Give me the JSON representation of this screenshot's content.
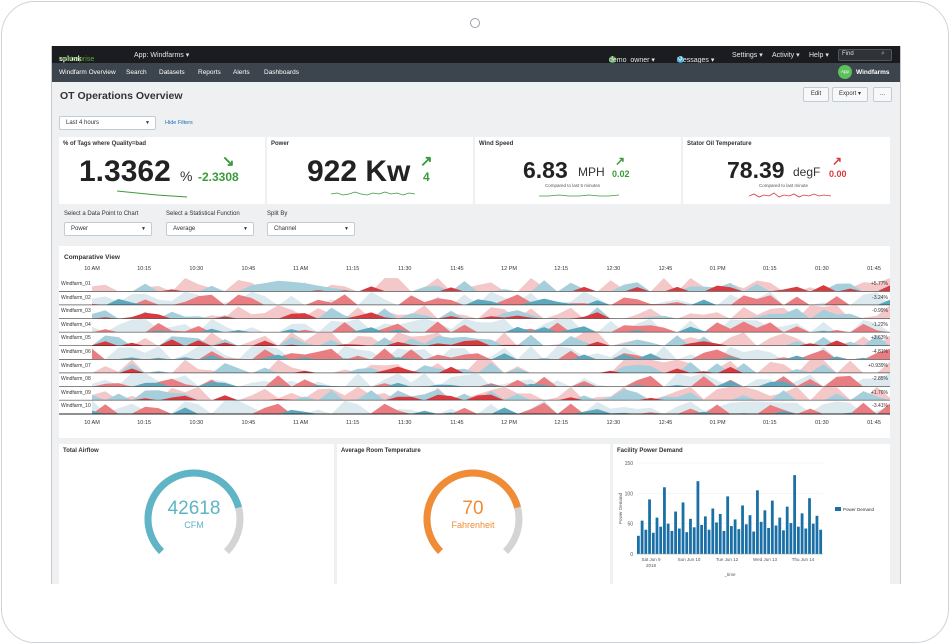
{
  "topbar": {
    "logo_main": "splunk",
    "logo_accent": ">enterprise",
    "app": "App: Windfarms ▾",
    "user_badge": "!",
    "user": "demo_owner ▾",
    "msg_badge": "3",
    "messages": "Messages ▾",
    "settings": "Settings ▾",
    "activity": "Activity ▾",
    "help": "Help ▾",
    "find": "Find"
  },
  "navbar": {
    "items": [
      "Windfarm Overview",
      "Search",
      "Datasets",
      "Reports",
      "Alerts",
      "Dashboards"
    ],
    "app_icon": "App",
    "app_name": "Windfarms"
  },
  "dashboard": {
    "title": "OT Operations Overview",
    "edit": "Edit",
    "export": "Export ▾",
    "more": "...",
    "time_range": "Last 4 hours",
    "hide_filters": "Hide Filters"
  },
  "kpis": [
    {
      "title": "% of Tags where Quality=bad",
      "value": "1.3362",
      "unit": "%",
      "delta": "-2.3308",
      "arrow": "↘",
      "color": "#3a9b3a",
      "note": ""
    },
    {
      "title": "Power",
      "value": "922 Kw",
      "unit": "",
      "delta": "4",
      "arrow": "↗",
      "color": "#3a9b3a",
      "note": ""
    },
    {
      "title": "Wind Speed",
      "value": "6.83",
      "unit": "MPH",
      "delta": "0.02",
      "arrow": "↗",
      "color": "#3a9b3a",
      "note": "Compared to last 5 minutes"
    },
    {
      "title": "Stator Oil Temperature",
      "value": "78.39",
      "unit": "degF",
      "delta": "0.00",
      "arrow": "↗",
      "color": "#d63a3a",
      "note": "Compared to last minute"
    }
  ],
  "filters": [
    {
      "label": "Select a Data Point to Chart",
      "value": "Power"
    },
    {
      "label": "Select a Statistical Function",
      "value": "Average"
    },
    {
      "label": "Split By",
      "value": "Channel"
    }
  ],
  "comparative": {
    "title": "Comparative View",
    "ticks": [
      "10 AM",
      "10:15",
      "10:30",
      "10:45",
      "11 AM",
      "11:15",
      "11:30",
      "11:45",
      "12 PM",
      "12:15",
      "12:30",
      "12:45",
      "01 PM",
      "01:15",
      "01:30",
      "01:45"
    ],
    "rows": [
      {
        "name": "Windfarm_01",
        "value": "+5.77%"
      },
      {
        "name": "Windfarm_02",
        "value": "-3.24%"
      },
      {
        "name": "Windfarm_03",
        "value": "-0.99%"
      },
      {
        "name": "Windfarm_04",
        "value": "-1.22%"
      },
      {
        "name": "Windfarm_05",
        "value": "+3.63%"
      },
      {
        "name": "Windfarm_06",
        "value": "-4.81%"
      },
      {
        "name": "Windfarm_07",
        "value": "+0.939%"
      },
      {
        "name": "Windfarm_08",
        "value": "-2.85%"
      },
      {
        "name": "Windfarm_09",
        "value": "+1.76%"
      },
      {
        "name": "Windfarm_10",
        "value": "-3.41%"
      }
    ]
  },
  "gauges": [
    {
      "title": "Total Airflow",
      "value": "42618",
      "unit": "CFM",
      "color": "#5fb4c6",
      "fraction": 0.78
    },
    {
      "title": "Average Room Temperature",
      "value": "70",
      "unit": "Fahrenheit",
      "color": "#f08c35",
      "fraction": 0.78
    }
  ],
  "facility": {
    "title": "Facility Power Demand",
    "y_ticks": [
      "150",
      "100",
      "50",
      "0"
    ],
    "ylabel": "Power Demand",
    "x_ticks": [
      "Sat Jun 9\n2018",
      "Sun Jun 10",
      "Tue Jun 12",
      "Wed Jun 13",
      "Thu Jun 14"
    ],
    "xlabel": "_time",
    "legend": "Power Demand",
    "color": "#1a6fa6"
  },
  "chart_data": {
    "type": "bar",
    "title": "Facility Power Demand",
    "xlabel": "_time",
    "ylabel": "Power Demand",
    "ylim": [
      0,
      150
    ],
    "series": [
      {
        "name": "Power Demand",
        "values": [
          30,
          55,
          40,
          90,
          35,
          60,
          45,
          110,
          50,
          38,
          70,
          42,
          85,
          36,
          58,
          44,
          120,
          48,
          62,
          40,
          75,
          52,
          66,
          38,
          95,
          46,
          57,
          41,
          80,
          49,
          64,
          37,
          105,
          53,
          72,
          43,
          88,
          47,
          60,
          39,
          78,
          51,
          130,
          45,
          67,
          42,
          92,
          50,
          63,
          40
        ]
      }
    ]
  }
}
